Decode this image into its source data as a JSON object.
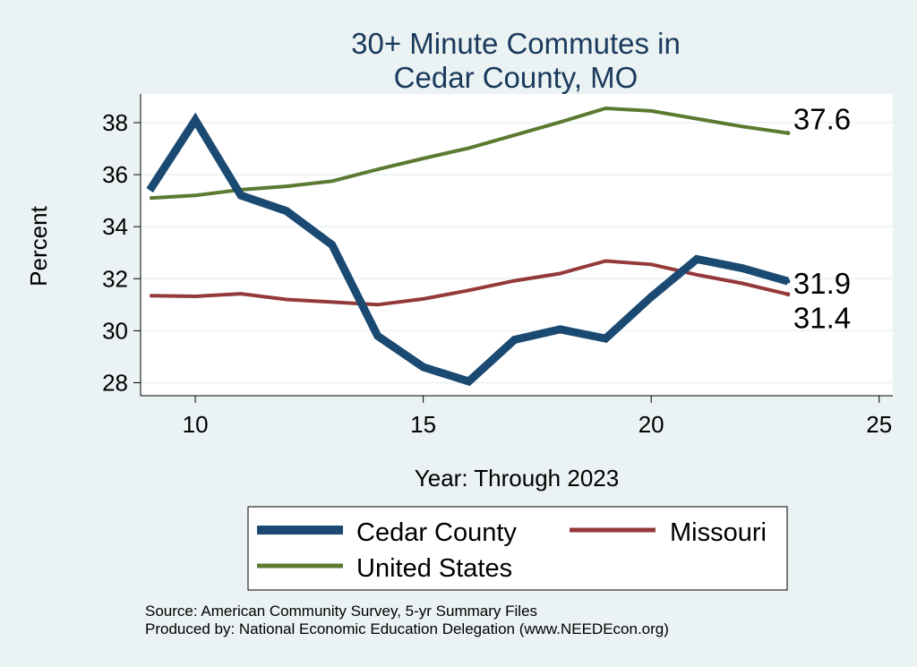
{
  "colors": {
    "background": "#eaf2f3",
    "plot_background": "#ffffff",
    "grid": "#eaf2f3",
    "title": "#1a3a5c"
  },
  "chart_data": {
    "type": "line",
    "title_lines": [
      "30+ Minute Commutes in",
      "Cedar County, MO"
    ],
    "xlabel": "Year: Through 2023",
    "ylabel": "Percent",
    "xlim": [
      8.8,
      25.3
    ],
    "ylim": [
      27.5,
      39.1
    ],
    "xticks": [
      10,
      15,
      20,
      25
    ],
    "yticks": [
      28,
      30,
      32,
      34,
      36,
      38
    ],
    "grid": true,
    "legend_position": "bottom",
    "series": [
      {
        "name": "Cedar County",
        "color": "#1a4a72",
        "width": 9,
        "x": [
          9,
          10,
          11,
          12,
          13,
          14,
          15,
          16,
          17,
          18,
          19,
          20,
          21,
          22,
          23
        ],
        "values": [
          35.4,
          38.1,
          35.2,
          34.6,
          33.3,
          29.8,
          28.6,
          28.05,
          29.65,
          30.05,
          29.7,
          31.3,
          32.75,
          32.4,
          31.9
        ],
        "end_label": "31.9"
      },
      {
        "name": "Missouri",
        "color": "#94393a",
        "width": 4,
        "x": [
          9,
          10,
          11,
          12,
          13,
          14,
          15,
          16,
          17,
          18,
          19,
          20,
          21,
          22,
          23
        ],
        "values": [
          31.35,
          31.32,
          31.42,
          31.2,
          31.1,
          31.0,
          31.22,
          31.55,
          31.92,
          32.2,
          32.68,
          32.55,
          32.15,
          31.82,
          31.4
        ],
        "end_label": "31.4"
      },
      {
        "name": "United States",
        "color": "#5a7a30",
        "width": 4,
        "x": [
          9,
          10,
          11,
          12,
          13,
          14,
          15,
          16,
          17,
          18,
          19,
          20,
          21,
          22,
          23
        ],
        "values": [
          35.1,
          35.2,
          35.42,
          35.55,
          35.75,
          36.2,
          36.62,
          37.02,
          37.52,
          38.02,
          38.55,
          38.45,
          38.15,
          37.85,
          37.6
        ],
        "end_label": "37.6"
      }
    ],
    "notes": [
      "Source: American Community Survey, 5-yr Summary Files",
      "Produced by: National Economic Education Delegation (www.NEEDEcon.org)"
    ]
  }
}
